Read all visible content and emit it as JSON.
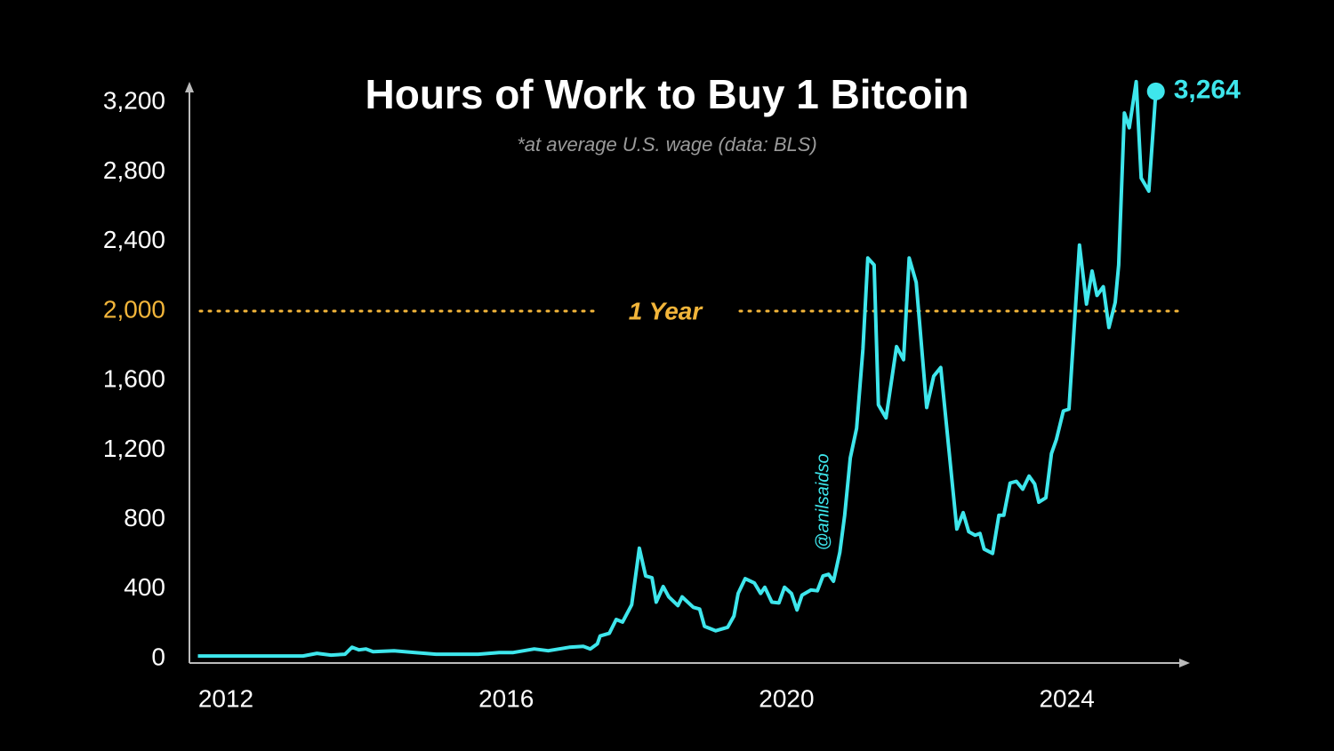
{
  "chart_data": {
    "type": "line",
    "title": "Hours of Work to Buy 1 Bitcoin",
    "subtitle": "*at average U.S. wage (data: BLS)",
    "watermark": "@anilsaidso",
    "x": [
      2011.6,
      2013.1,
      2013.3,
      2013.5,
      2013.7,
      2013.8,
      2013.9,
      2014.0,
      2014.1,
      2014.4,
      2014.7,
      2015.0,
      2015.6,
      2015.9,
      2016.1,
      2016.4,
      2016.6,
      2016.9,
      2017.1,
      2017.2,
      2017.3,
      2017.34,
      2017.47,
      2017.57,
      2017.66,
      2017.79,
      2017.9,
      2017.99,
      2018.08,
      2018.14,
      2018.24,
      2018.32,
      2018.45,
      2018.51,
      2018.67,
      2018.76,
      2018.83,
      2018.99,
      2019.16,
      2019.25,
      2019.31,
      2019.41,
      2019.54,
      2019.63,
      2019.69,
      2019.79,
      2019.89,
      2019.97,
      2020.07,
      2020.15,
      2020.22,
      2020.35,
      2020.44,
      2020.52,
      2020.6,
      2020.67,
      2020.76,
      2020.83,
      2020.91,
      2021.0,
      2021.09,
      2021.16,
      2021.25,
      2021.31,
      2021.42,
      2021.57,
      2021.67,
      2021.75,
      2021.85,
      2022.0,
      2022.1,
      2022.2,
      2022.43,
      2022.52,
      2022.6,
      2022.69,
      2022.76,
      2022.82,
      2022.94,
      2023.03,
      2023.1,
      2023.19,
      2023.28,
      2023.37,
      2023.46,
      2023.54,
      2023.6,
      2023.7,
      2023.78,
      2023.85,
      2023.95,
      2024.03,
      2024.18,
      2024.28,
      2024.36,
      2024.43,
      2024.52,
      2024.6,
      2024.69,
      2024.74,
      2024.82,
      2024.89,
      2024.99,
      2025.06,
      2025.17,
      2025.27
    ],
    "series": [
      {
        "name": "Hours of work",
        "color": "#3ee6ec",
        "values": [
          15,
          15,
          30,
          20,
          25,
          65,
          50,
          55,
          40,
          45,
          35,
          25,
          25,
          35,
          35,
          55,
          45,
          65,
          70,
          55,
          85,
          130,
          145,
          225,
          210,
          310,
          635,
          475,
          465,
          325,
          415,
          355,
          305,
          355,
          295,
          285,
          185,
          160,
          180,
          245,
          375,
          460,
          435,
          375,
          410,
          325,
          320,
          410,
          375,
          280,
          365,
          395,
          390,
          475,
          485,
          445,
          610,
          825,
          1155,
          1325,
          1780,
          2305,
          2265,
          1460,
          1385,
          1795,
          1720,
          2305,
          2165,
          1445,
          1625,
          1675,
          745,
          840,
          730,
          710,
          720,
          630,
          605,
          825,
          825,
          1010,
          1020,
          975,
          1050,
          1005,
          900,
          925,
          1180,
          1260,
          1425,
          1435,
          2380,
          2040,
          2230,
          2090,
          2140,
          1905,
          2050,
          2265,
          3140,
          3055,
          3320,
          2765,
          2690,
          3264
        ]
      }
    ],
    "end_label": {
      "value": 3264,
      "label": "3,264"
    },
    "reference_line": {
      "value": 2000,
      "label": "1 Year",
      "color": "#f2b53a"
    },
    "xlim": [
      2011.5,
      2025.7
    ],
    "xticks": [
      2012,
      2016,
      2020,
      2024
    ],
    "ylim": [
      0,
      3350
    ],
    "yticks": [
      0,
      400,
      800,
      {
        "value": 1200,
        "label": "1,200"
      },
      {
        "value": 1600,
        "label": "1,600"
      },
      {
        "value": 2000,
        "label": "2,000"
      },
      {
        "value": 2400,
        "label": "2,400"
      },
      {
        "value": 2800,
        "label": "2,800"
      },
      {
        "value": 3200,
        "label": "3,200"
      }
    ],
    "grid": false
  }
}
